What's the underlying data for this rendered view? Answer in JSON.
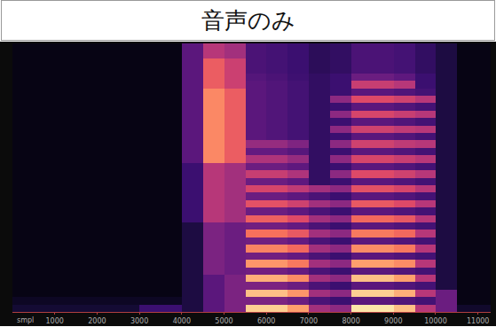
{
  "chart_data": {
    "type": "heatmap",
    "title": "音声のみ",
    "x_label": "smpl",
    "x": [
      250,
      750,
      1250,
      1750,
      2250,
      2750,
      3250,
      3750,
      4250,
      4750,
      5250,
      5750,
      6250,
      6750,
      7250,
      7750,
      8250,
      8750,
      9250,
      9750,
      10250,
      10750,
      11250
    ],
    "xlim": [
      0,
      11300
    ],
    "xticks": [
      1000,
      2000,
      3000,
      4000,
      5000,
      6000,
      7000,
      8000,
      9000,
      10000,
      11000
    ],
    "tick_labels": "x",
    "zlim": [
      0,
      100
    ],
    "cells": [
      [
        12,
        12,
        12,
        12,
        12,
        12,
        25,
        25,
        15,
        35,
        45,
        96,
        96,
        90,
        55,
        50,
        98,
        98,
        94,
        60,
        40,
        10,
        10
      ],
      [
        8,
        8,
        8,
        8,
        8,
        8,
        8,
        8,
        15,
        35,
        45,
        45,
        45,
        40,
        30,
        25,
        35,
        35,
        32,
        28,
        40,
        4,
        4
      ],
      [
        4,
        4,
        4,
        4,
        4,
        4,
        4,
        4,
        15,
        35,
        45,
        94,
        94,
        88,
        55,
        50,
        96,
        96,
        92,
        60,
        40,
        4,
        4
      ],
      [
        4,
        4,
        4,
        4,
        4,
        4,
        4,
        4,
        15,
        35,
        45,
        45,
        45,
        40,
        30,
        25,
        35,
        35,
        32,
        28,
        15,
        4,
        4
      ],
      [
        4,
        4,
        4,
        4,
        4,
        4,
        4,
        4,
        15,
        35,
        45,
        92,
        92,
        86,
        55,
        50,
        94,
        94,
        90,
        60,
        15,
        4,
        4
      ],
      [
        4,
        4,
        4,
        4,
        4,
        4,
        4,
        4,
        15,
        45,
        40,
        42,
        42,
        38,
        30,
        25,
        35,
        35,
        32,
        28,
        15,
        4,
        4
      ],
      [
        4,
        4,
        4,
        4,
        4,
        4,
        4,
        4,
        15,
        45,
        40,
        88,
        88,
        82,
        55,
        50,
        90,
        90,
        86,
        60,
        15,
        4,
        4
      ],
      [
        4,
        4,
        4,
        4,
        4,
        4,
        4,
        4,
        15,
        45,
        40,
        42,
        42,
        38,
        30,
        25,
        35,
        35,
        32,
        28,
        15,
        4,
        4
      ],
      [
        4,
        4,
        4,
        4,
        4,
        4,
        4,
        4,
        15,
        45,
        40,
        84,
        84,
        78,
        55,
        50,
        86,
        86,
        82,
        60,
        15,
        4,
        4
      ],
      [
        4,
        4,
        4,
        4,
        4,
        4,
        4,
        4,
        15,
        45,
        40,
        42,
        42,
        38,
        30,
        25,
        35,
        35,
        32,
        28,
        15,
        4,
        4
      ],
      [
        4,
        4,
        4,
        4,
        4,
        4,
        4,
        4,
        15,
        45,
        40,
        80,
        80,
        74,
        55,
        50,
        82,
        82,
        78,
        60,
        15,
        4,
        4
      ],
      [
        4,
        4,
        4,
        4,
        4,
        4,
        4,
        4,
        15,
        45,
        40,
        42,
        42,
        38,
        30,
        25,
        35,
        35,
        32,
        28,
        15,
        4,
        4
      ],
      [
        4,
        4,
        4,
        4,
        4,
        4,
        4,
        4,
        25,
        60,
        55,
        76,
        76,
        70,
        55,
        50,
        78,
        78,
        74,
        60,
        15,
        4,
        4
      ],
      [
        4,
        4,
        4,
        4,
        4,
        4,
        4,
        4,
        25,
        60,
        55,
        40,
        40,
        36,
        30,
        25,
        35,
        35,
        32,
        28,
        15,
        4,
        4
      ],
      [
        4,
        4,
        4,
        4,
        4,
        4,
        4,
        4,
        25,
        60,
        55,
        72,
        72,
        66,
        55,
        50,
        74,
        74,
        70,
        60,
        15,
        4,
        4
      ],
      [
        4,
        4,
        4,
        4,
        4,
        4,
        4,
        4,
        25,
        60,
        55,
        40,
        40,
        36,
        30,
        25,
        35,
        35,
        32,
        28,
        15,
        4,
        4
      ],
      [
        4,
        4,
        4,
        4,
        4,
        4,
        4,
        4,
        25,
        60,
        55,
        68,
        68,
        62,
        55,
        50,
        72,
        72,
        68,
        60,
        15,
        4,
        4
      ],
      [
        4,
        4,
        4,
        4,
        4,
        4,
        4,
        4,
        25,
        60,
        55,
        40,
        40,
        36,
        22,
        25,
        35,
        35,
        32,
        28,
        15,
        4,
        4
      ],
      [
        4,
        4,
        4,
        4,
        4,
        4,
        4,
        4,
        25,
        60,
        55,
        64,
        64,
        58,
        22,
        50,
        70,
        70,
        66,
        60,
        15,
        4,
        4
      ],
      [
        4,
        4,
        4,
        4,
        4,
        4,
        4,
        4,
        25,
        60,
        55,
        40,
        40,
        36,
        22,
        25,
        35,
        35,
        32,
        28,
        15,
        4,
        4
      ],
      [
        4,
        4,
        4,
        4,
        4,
        4,
        4,
        4,
        35,
        85,
        75,
        58,
        58,
        52,
        22,
        50,
        68,
        68,
        64,
        60,
        15,
        4,
        4
      ],
      [
        4,
        4,
        4,
        4,
        4,
        4,
        4,
        4,
        35,
        85,
        75,
        38,
        38,
        34,
        22,
        25,
        35,
        35,
        32,
        28,
        15,
        4,
        4
      ],
      [
        4,
        4,
        4,
        4,
        4,
        4,
        4,
        4,
        35,
        85,
        75,
        52,
        52,
        46,
        22,
        50,
        66,
        66,
        62,
        60,
        15,
        4,
        4
      ],
      [
        4,
        4,
        4,
        4,
        4,
        4,
        4,
        4,
        35,
        85,
        75,
        35,
        32,
        28,
        22,
        25,
        35,
        35,
        32,
        28,
        15,
        4,
        4
      ],
      [
        4,
        4,
        4,
        4,
        4,
        4,
        4,
        4,
        35,
        85,
        75,
        35,
        32,
        28,
        22,
        50,
        66,
        66,
        62,
        60,
        15,
        4,
        4
      ],
      [
        4,
        4,
        4,
        4,
        4,
        4,
        4,
        4,
        35,
        85,
        75,
        35,
        32,
        28,
        22,
        25,
        35,
        35,
        32,
        28,
        15,
        4,
        4
      ],
      [
        4,
        4,
        4,
        4,
        4,
        4,
        4,
        4,
        35,
        85,
        75,
        35,
        32,
        28,
        22,
        50,
        68,
        68,
        64,
        60,
        15,
        4,
        4
      ],
      [
        4,
        4,
        4,
        4,
        4,
        4,
        4,
        4,
        35,
        85,
        75,
        35,
        32,
        28,
        22,
        25,
        35,
        35,
        32,
        28,
        15,
        4,
        4
      ],
      [
        4,
        4,
        4,
        4,
        4,
        4,
        4,
        4,
        35,
        85,
        75,
        35,
        32,
        28,
        22,
        50,
        70,
        70,
        66,
        60,
        15,
        4,
        4
      ],
      [
        4,
        4,
        4,
        4,
        4,
        4,
        4,
        4,
        35,
        85,
        75,
        35,
        32,
        28,
        22,
        25,
        35,
        35,
        32,
        28,
        15,
        4,
        4
      ],
      [
        4,
        4,
        4,
        4,
        4,
        4,
        4,
        4,
        35,
        75,
        65,
        35,
        32,
        28,
        22,
        25,
        64,
        64,
        60,
        25,
        15,
        4,
        4
      ],
      [
        4,
        4,
        4,
        4,
        4,
        4,
        4,
        4,
        35,
        75,
        65,
        33,
        30,
        26,
        22,
        25,
        40,
        40,
        36,
        25,
        15,
        4,
        4
      ],
      [
        4,
        4,
        4,
        4,
        4,
        4,
        4,
        4,
        35,
        75,
        65,
        30,
        28,
        25,
        20,
        22,
        30,
        30,
        28,
        22,
        15,
        4,
        4
      ],
      [
        4,
        4,
        4,
        4,
        4,
        4,
        4,
        4,
        35,
        75,
        65,
        30,
        28,
        25,
        20,
        22,
        30,
        30,
        28,
        22,
        15,
        4,
        4
      ],
      [
        4,
        4,
        4,
        4,
        4,
        4,
        4,
        4,
        35,
        60,
        55,
        30,
        28,
        25,
        20,
        22,
        30,
        30,
        28,
        22,
        15,
        4,
        4
      ],
      [
        4,
        4,
        4,
        4,
        4,
        4,
        4,
        4,
        35,
        60,
        55,
        30,
        28,
        25,
        20,
        22,
        30,
        30,
        28,
        22,
        15,
        4,
        4
      ]
    ]
  }
}
